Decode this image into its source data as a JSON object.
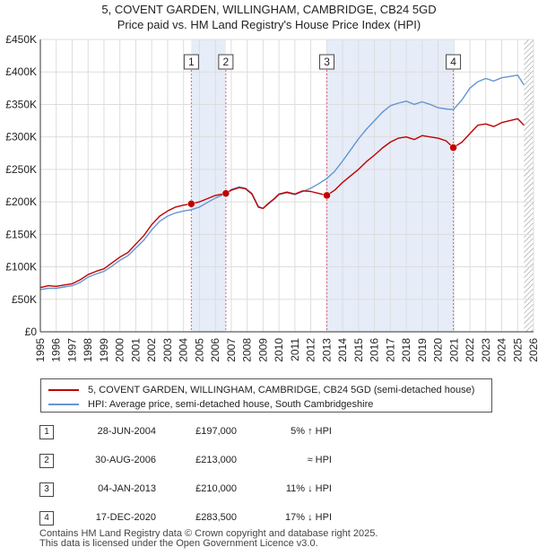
{
  "title": {
    "line1": "5, COVENT GARDEN, WILLINGHAM, CAMBRIDGE, CB24 5GD",
    "line2": "Price paid vs. HM Land Registry's House Price Index (HPI)"
  },
  "colors": {
    "property": "#c00000",
    "hpi": "#6495d2",
    "shade": "#e6ecf8",
    "marker_line": "#e06080"
  },
  "legend": {
    "property_label": "5, COVENT GARDEN, WILLINGHAM, CAMBRIDGE, CB24 5GD (semi-detached house)",
    "hpi_label": "HPI: Average price, semi-detached house, South Cambridgeshire"
  },
  "sales": [
    {
      "num": "1",
      "date": "28-JUN-2004",
      "price": "£197,000",
      "hpi": "5% ↑ HPI"
    },
    {
      "num": "2",
      "date": "30-AUG-2006",
      "price": "£213,000",
      "hpi": "≈ HPI"
    },
    {
      "num": "3",
      "date": "04-JAN-2013",
      "price": "£210,000",
      "hpi": "11% ↓ HPI"
    },
    {
      "num": "4",
      "date": "17-DEC-2020",
      "price": "£283,500",
      "hpi": "17% ↓ HPI"
    }
  ],
  "footer": {
    "line1": "Contains HM Land Registry data © Crown copyright and database right 2025.",
    "line2": "This data is licensed under the Open Government Licence v3.0."
  },
  "chart_data": {
    "type": "line",
    "title": "5, COVENT GARDEN, WILLINGHAM, CAMBRIDGE, CB24 5GD — Price paid vs. HM Land Registry's House Price Index (HPI)",
    "xlabel": "",
    "ylabel": "",
    "xlim": [
      1995,
      2026
    ],
    "ylim": [
      0,
      450000
    ],
    "y_ticks": [
      0,
      50000,
      100000,
      150000,
      200000,
      250000,
      300000,
      350000,
      400000,
      450000
    ],
    "y_tick_labels": [
      "£0",
      "£50K",
      "£100K",
      "£150K",
      "£200K",
      "£250K",
      "£300K",
      "£350K",
      "£400K",
      "£450K"
    ],
    "x_ticks": [
      1995,
      1996,
      1997,
      1998,
      1999,
      2000,
      2001,
      2002,
      2003,
      2004,
      2005,
      2006,
      2007,
      2008,
      2009,
      2010,
      2011,
      2012,
      2013,
      2014,
      2015,
      2016,
      2017,
      2018,
      2019,
      2020,
      2021,
      2022,
      2023,
      2024,
      2025,
      2026
    ],
    "x_tick_labels": [
      "1995",
      "1996",
      "1997",
      "1998",
      "1999",
      "2000",
      "2001",
      "2002",
      "2003",
      "2004",
      "2005",
      "2006",
      "2007",
      "2008",
      "2009",
      "2010",
      "2011",
      "2012",
      "2013",
      "2014",
      "2015",
      "2016",
      "2017",
      "2018",
      "2019",
      "2020",
      "2021",
      "2022",
      "2023",
      "2024",
      "2025",
      "2026"
    ],
    "grid": true,
    "shaded_spans": [
      [
        2004.49,
        2006.66
      ],
      [
        2013.01,
        2020.96
      ]
    ],
    "hatched_from": 2025.4,
    "markers": [
      {
        "label": "1",
        "x": 2004.49,
        "y": 197000
      },
      {
        "label": "2",
        "x": 2006.66,
        "y": 213000
      },
      {
        "label": "3",
        "x": 2013.01,
        "y": 210000
      },
      {
        "label": "4",
        "x": 2020.96,
        "y": 283500
      }
    ],
    "series": [
      {
        "name": "5, COVENT GARDEN, WILLINGHAM, CAMBRIDGE, CB24 5GD (semi-detached house)",
        "x": [
          1995.0,
          1995.5,
          1996.0,
          1996.5,
          1997.0,
          1997.5,
          1998.0,
          1998.5,
          1999.0,
          1999.5,
          2000.0,
          2000.5,
          2001.0,
          2001.5,
          2002.0,
          2002.5,
          2003.0,
          2003.5,
          2004.0,
          2004.49,
          2005.0,
          2005.5,
          2006.0,
          2006.66,
          2007.0,
          2007.5,
          2007.9,
          2008.3,
          2008.7,
          2009.0,
          2009.3,
          2009.7,
          2010.0,
          2010.5,
          2011.0,
          2011.5,
          2012.0,
          2012.5,
          2013.01,
          2013.5,
          2014.0,
          2014.5,
          2015.0,
          2015.5,
          2016.0,
          2016.5,
          2017.0,
          2017.5,
          2018.0,
          2018.5,
          2019.0,
          2019.5,
          2020.0,
          2020.5,
          2020.96,
          2021.5,
          2022.0,
          2022.5,
          2023.0,
          2023.5,
          2024.0,
          2024.5,
          2025.0,
          2025.4
        ],
        "values": [
          68000,
          71000,
          70000,
          72000,
          74000,
          80000,
          88000,
          93000,
          97000,
          106000,
          115000,
          122000,
          135000,
          148000,
          165000,
          178000,
          186000,
          192000,
          195000,
          197000,
          200000,
          205000,
          210000,
          213000,
          218000,
          222000,
          220000,
          212000,
          192000,
          190000,
          197000,
          205000,
          212000,
          215000,
          212000,
          217000,
          216000,
          213000,
          210000,
          218000,
          230000,
          240000,
          250000,
          262000,
          272000,
          283000,
          292000,
          298000,
          300000,
          296000,
          302000,
          300000,
          298000,
          294000,
          283500,
          292000,
          305000,
          318000,
          320000,
          316000,
          322000,
          325000,
          328000,
          318000
        ]
      },
      {
        "name": "HPI: Average price, semi-detached house, South Cambridgeshire",
        "x": [
          1995.0,
          1995.5,
          1996.0,
          1996.5,
          1997.0,
          1997.5,
          1998.0,
          1998.5,
          1999.0,
          1999.5,
          2000.0,
          2000.5,
          2001.0,
          2001.5,
          2002.0,
          2002.5,
          2003.0,
          2003.5,
          2004.0,
          2004.49,
          2005.0,
          2005.5,
          2006.0,
          2006.66,
          2007.0,
          2007.5,
          2007.9,
          2008.3,
          2008.7,
          2009.0,
          2009.3,
          2009.7,
          2010.0,
          2010.5,
          2011.0,
          2011.5,
          2012.0,
          2012.5,
          2013.01,
          2013.5,
          2014.0,
          2014.5,
          2015.0,
          2015.5,
          2016.0,
          2016.5,
          2017.0,
          2017.5,
          2018.0,
          2018.5,
          2019.0,
          2019.5,
          2020.0,
          2020.5,
          2020.96,
          2021.5,
          2022.0,
          2022.5,
          2023.0,
          2023.5,
          2024.0,
          2024.5,
          2025.0,
          2025.4
        ],
        "values": [
          65000,
          67000,
          67000,
          69000,
          71000,
          76000,
          84000,
          89000,
          93000,
          101000,
          110000,
          117000,
          129000,
          141000,
          157000,
          170000,
          178000,
          183000,
          186000,
          188000,
          192000,
          199000,
          206000,
          213000,
          219000,
          223000,
          221000,
          213000,
          193000,
          190000,
          196000,
          204000,
          211000,
          214000,
          211000,
          216000,
          221000,
          228000,
          236000,
          247000,
          263000,
          280000,
          297000,
          312000,
          325000,
          338000,
          348000,
          352000,
          355000,
          350000,
          354000,
          350000,
          345000,
          343000,
          342000,
          357000,
          375000,
          385000,
          390000,
          386000,
          391000,
          393000,
          395000,
          380000
        ]
      }
    ]
  }
}
